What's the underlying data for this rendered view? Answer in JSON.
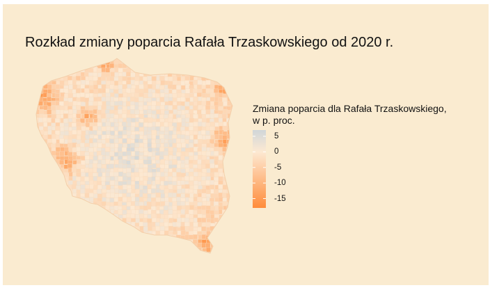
{
  "title": "Rozkład zmiany poparcia Rafała Trzaskowskiego od 2020 r.",
  "legend": {
    "title_line1": "Zmiana poparcia dla Rafała Trzaskowskiego,",
    "title_line2": "w p. proc.",
    "ticks": [
      "5",
      "0",
      "-5",
      "-10",
      "-15"
    ],
    "tick_values": [
      5,
      0,
      -5,
      -10,
      -15
    ],
    "range": [
      -18,
      7
    ],
    "color_positive": "#d0d6d9",
    "color_zero": "#fde9d2",
    "color_negative": "#ff8c3a"
  },
  "colors": {
    "background": "#faebd0",
    "outer_background": "#ffffff",
    "text": "#111111"
  },
  "map": {
    "region": "Polska",
    "variable": "zmiana poparcia, p. proc."
  }
}
